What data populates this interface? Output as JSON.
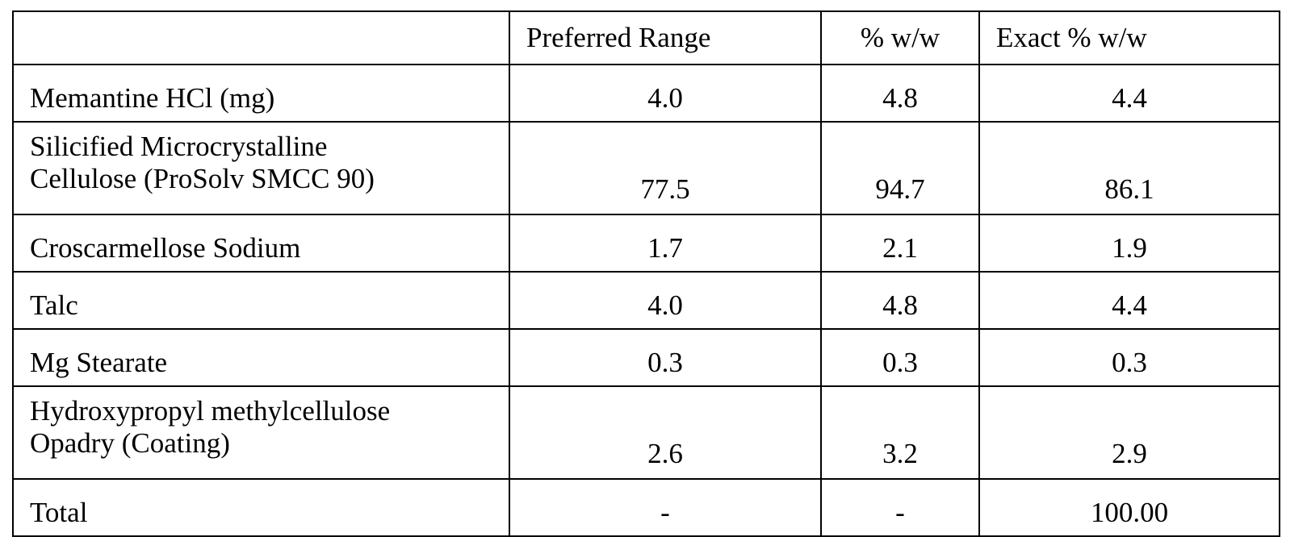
{
  "table": {
    "headers": {
      "ingredient": "",
      "preferred_range": "Preferred Range",
      "percent_ww": "% w/w",
      "exact_percent_ww": "Exact % w/w"
    },
    "rows": [
      {
        "name_line1": "Memantine HCl (mg)",
        "name_line2": "",
        "preferred_range": "4.0",
        "percent_ww": "4.8",
        "exact_percent_ww": "4.4"
      },
      {
        "name_line1": "Silicified Microcrystalline",
        "name_line2": "Cellulose (ProSolv SMCC 90)",
        "preferred_range": "77.5",
        "percent_ww": "94.7",
        "exact_percent_ww": "86.1"
      },
      {
        "name_line1": "Croscarmellose Sodium",
        "name_line2": "",
        "preferred_range": "1.7",
        "percent_ww": "2.1",
        "exact_percent_ww": "1.9"
      },
      {
        "name_line1": "Talc",
        "name_line2": "",
        "preferred_range": "4.0",
        "percent_ww": "4.8",
        "exact_percent_ww": "4.4"
      },
      {
        "name_line1": "Mg Stearate",
        "name_line2": "",
        "preferred_range": "0.3",
        "percent_ww": "0.3",
        "exact_percent_ww": "0.3"
      },
      {
        "name_line1": "Hydroxypropyl methylcellulose",
        "name_line2": "Opadry (Coating)",
        "preferred_range": "2.6",
        "percent_ww": "3.2",
        "exact_percent_ww": "2.9"
      },
      {
        "name_line1": "Total",
        "name_line2": "",
        "preferred_range": "-",
        "percent_ww": "-",
        "exact_percent_ww": "100.00"
      }
    ]
  }
}
